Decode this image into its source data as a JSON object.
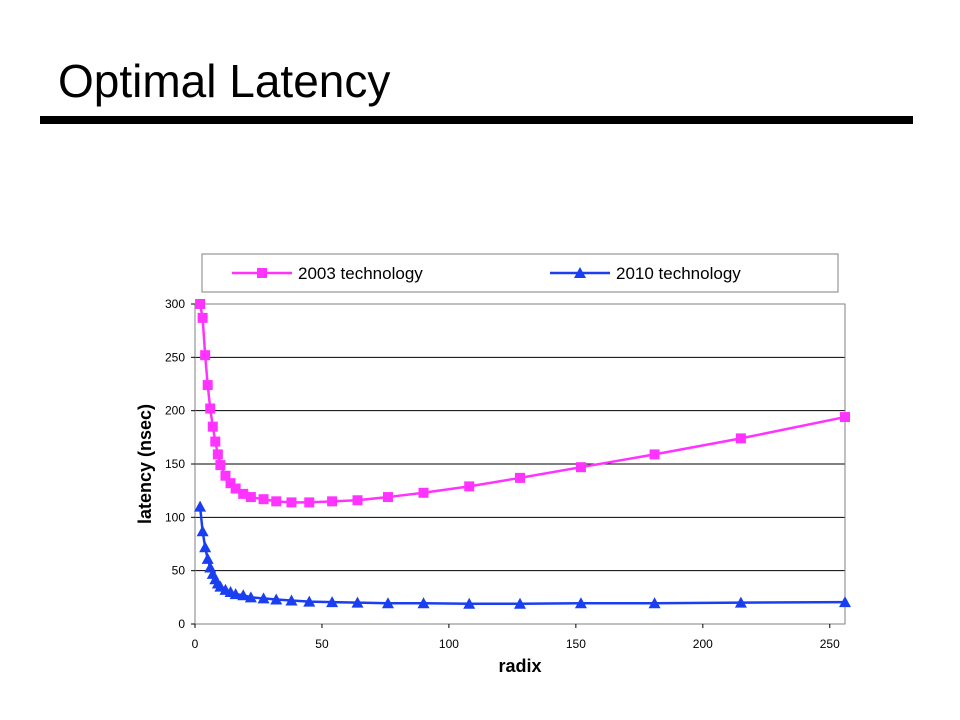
{
  "slide": {
    "title": "Optimal Latency"
  },
  "chart_data": {
    "type": "line",
    "title": "",
    "xlabel": "radix",
    "ylabel": "latency (nsec)",
    "xlim": [
      0,
      256
    ],
    "ylim": [
      0,
      300
    ],
    "xticks": [
      0,
      50,
      100,
      150,
      200,
      250
    ],
    "yticks": [
      0,
      50,
      100,
      150,
      200,
      250,
      300
    ],
    "grid": "horizontal",
    "legend": "top",
    "series": [
      {
        "name": "2003 technology",
        "color": "#ff33ff",
        "marker": "square",
        "x": [
          2,
          3,
          4,
          5,
          6,
          7,
          8,
          9,
          10,
          12,
          14,
          16,
          19,
          22,
          27,
          32,
          38,
          45,
          54,
          64,
          76,
          90,
          108,
          128,
          152,
          181,
          215,
          256
        ],
        "y": [
          300,
          287,
          252,
          224,
          202,
          185,
          171,
          159,
          149,
          139,
          132,
          127,
          122,
          119,
          117,
          115,
          114,
          114,
          115,
          116,
          119,
          123,
          129,
          137,
          147,
          159,
          174,
          194
        ]
      },
      {
        "name": "2010 technology",
        "color": "#1a3ff0",
        "marker": "triangle",
        "x": [
          2,
          3,
          4,
          5,
          6,
          7,
          8,
          9,
          10,
          12,
          14,
          16,
          19,
          22,
          27,
          32,
          38,
          45,
          54,
          64,
          76,
          90,
          108,
          128,
          152,
          181,
          215,
          256
        ],
        "y": [
          110,
          87,
          72,
          61,
          53,
          47,
          42,
          38,
          35,
          32,
          30,
          28,
          27,
          25,
          24,
          23,
          22,
          21,
          20.5,
          20,
          19.5,
          19.5,
          19,
          19,
          19.5,
          19.5,
          20,
          20.5
        ]
      }
    ]
  }
}
